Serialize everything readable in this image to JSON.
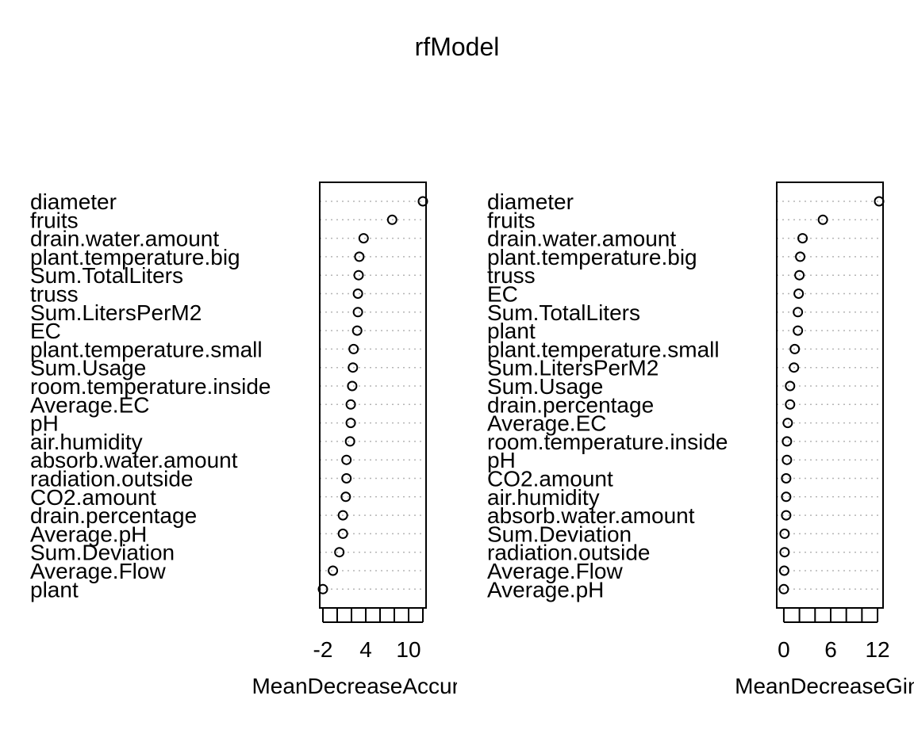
{
  "title": "rfModel",
  "chart_data": [
    {
      "type": "scatter",
      "xlabel": "MeanDecreaseAccuracy",
      "tick_labels": [
        "-2",
        "4",
        "10"
      ],
      "ticks": [
        -2,
        0,
        2,
        4,
        6,
        8,
        10,
        12
      ],
      "xlim": [
        -2,
        12
      ],
      "grid": true,
      "categories": [
        "diameter",
        "fruits",
        "drain.water.amount",
        "plant.temperature.big",
        "Sum.TotalLiters",
        "truss",
        "Sum.LitersPerM2",
        "EC",
        "plant.temperature.small",
        "Sum.Usage",
        "room.temperature.inside",
        "Average.EC",
        "pH",
        "air.humidity",
        "absorb.water.amount",
        "radiation.outside",
        "CO2.amount",
        "drain.percentage",
        "Average.pH",
        "Sum.Deviation",
        "Average.Flow",
        "plant"
      ],
      "values": [
        12.0,
        7.7,
        3.7,
        3.1,
        3.0,
        2.9,
        2.9,
        2.8,
        2.3,
        2.2,
        2.1,
        1.9,
        1.9,
        1.8,
        1.3,
        1.3,
        1.2,
        0.8,
        0.8,
        0.3,
        -0.6,
        -2.0
      ]
    },
    {
      "type": "scatter",
      "xlabel": "MeanDecreaseGini",
      "tick_labels": [
        "0",
        "6",
        "12"
      ],
      "ticks": [
        0,
        2,
        4,
        6,
        8,
        10,
        12
      ],
      "xlim": [
        -0.5,
        12.3
      ],
      "grid": true,
      "categories": [
        "diameter",
        "fruits",
        "drain.water.amount",
        "plant.temperature.big",
        "truss",
        "EC",
        "Sum.TotalLiters",
        "plant",
        "plant.temperature.small",
        "Sum.LitersPerM2",
        "Sum.Usage",
        "drain.percentage",
        "Average.EC",
        "room.temperature.inside",
        "pH",
        "CO2.amount",
        "air.humidity",
        "absorb.water.amount",
        "Sum.Deviation",
        "radiation.outside",
        "Average.Flow",
        "Average.pH"
      ],
      "values": [
        12.2,
        5.0,
        2.4,
        2.1,
        2.0,
        1.9,
        1.8,
        1.8,
        1.4,
        1.3,
        0.8,
        0.8,
        0.5,
        0.4,
        0.4,
        0.3,
        0.3,
        0.3,
        0.1,
        0.1,
        0.05,
        0.0
      ]
    }
  ]
}
